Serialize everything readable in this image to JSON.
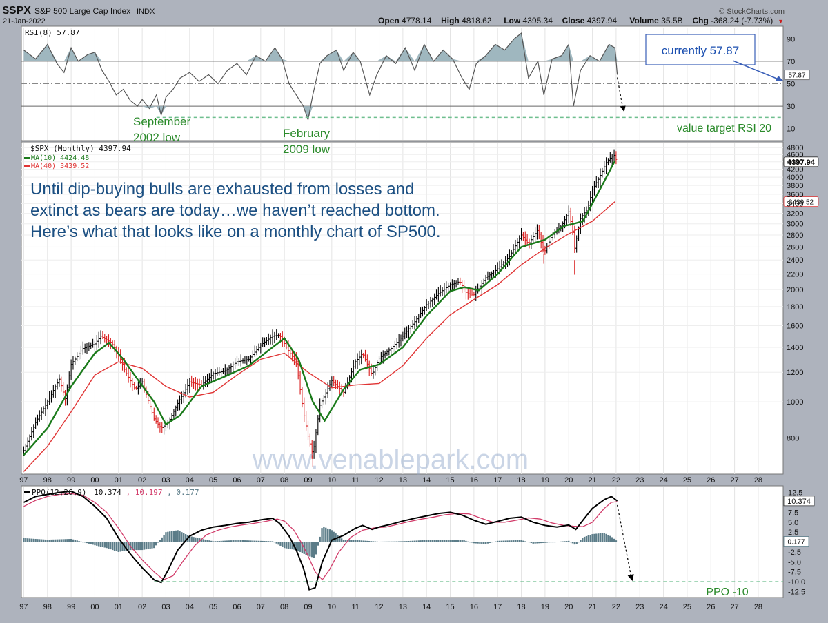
{
  "header": {
    "symbol": "$SPX",
    "name": "S&P 500 Large Cap Index",
    "exchange": "INDX",
    "date": "21-Jan-2022",
    "brand": "© StockCharts.com",
    "stats": [
      {
        "label": "Open",
        "value": "4778.14"
      },
      {
        "label": "High",
        "value": "4818.62"
      },
      {
        "label": "Low",
        "value": "4395.34"
      },
      {
        "label": "Close",
        "value": "4397.94"
      },
      {
        "label": "Volume",
        "value": "35.5B"
      },
      {
        "label": "Chg",
        "value": "-368.24 (-7.73%)"
      }
    ],
    "chg_arrow": "▼"
  },
  "annotations": {
    "callout": "currently 57.87",
    "sept_label_1": "September",
    "sept_label_2": "2002 low",
    "feb_label_1": "February",
    "feb_label_2": "2009 low",
    "rsi_target": "value target RSI 20",
    "ppo_target": "PPO -10",
    "message_line_1": "Until dip-buying bulls are exhausted from losses and",
    "message_line_2": "extinct as bears are today…we haven’t reached bottom.",
    "message_line_3": "Here’s what that looks like on a monthly chart of SP500.",
    "watermark": "www.venablepark.com"
  },
  "colors": {
    "panel_bg": "#ffffff",
    "rsi_fill": "#9fb7bf",
    "ma10": "#1a7a1a",
    "ma40": "#e03434",
    "up_bar": "#000000",
    "down_bar": "#d91e1e",
    "ppo_line": "#000000",
    "signal_line": "#d23c6a",
    "hist": "#5b7c88",
    "annotation_text": "#2a8a2a",
    "callout_text": "#1b4fb0",
    "message_text": "#1b4f82",
    "dashed_target": "#6fbf8f"
  },
  "chart_data": [
    {
      "type": "line",
      "panel": "RSI",
      "legend": "RSI(8) 57.87",
      "series": [
        {
          "name": "RSI(8)",
          "x": [
            1997.0,
            1997.5,
            1998.0,
            1998.4,
            1998.7,
            1999.0,
            1999.3,
            1999.7,
            2000.0,
            2000.3,
            2000.6,
            2000.9,
            2001.2,
            2001.5,
            2001.8,
            2002.0,
            2002.3,
            2002.6,
            2002.8,
            2003.0,
            2003.3,
            2003.6,
            2004.0,
            2004.4,
            2004.8,
            2005.2,
            2005.6,
            2006.0,
            2006.4,
            2006.8,
            2007.2,
            2007.6,
            2007.9,
            2008.2,
            2008.5,
            2008.8,
            2009.0,
            2009.2,
            2009.5,
            2009.8,
            2010.2,
            2010.5,
            2010.9,
            2011.2,
            2011.6,
            2011.9,
            2012.3,
            2012.7,
            2013.1,
            2013.5,
            2013.9,
            2014.3,
            2014.7,
            2015.1,
            2015.5,
            2015.8,
            2016.1,
            2016.5,
            2016.9,
            2017.3,
            2017.7,
            2018.0,
            2018.3,
            2018.7,
            2018.95,
            2019.3,
            2019.7,
            2020.0,
            2020.2,
            2020.5,
            2020.9,
            2021.3,
            2021.7,
            2021.95,
            2022.05
          ],
          "y": [
            80,
            72,
            85,
            68,
            60,
            82,
            70,
            76,
            78,
            62,
            52,
            40,
            45,
            35,
            30,
            36,
            28,
            40,
            22,
            38,
            45,
            55,
            60,
            52,
            58,
            50,
            62,
            68,
            58,
            75,
            70,
            82,
            72,
            50,
            40,
            30,
            18,
            40,
            68,
            75,
            80,
            62,
            78,
            70,
            40,
            58,
            75,
            68,
            82,
            62,
            85,
            70,
            80,
            72,
            55,
            45,
            68,
            75,
            85,
            80,
            90,
            95,
            55,
            70,
            40,
            72,
            75,
            85,
            30,
            62,
            75,
            70,
            85,
            82,
            58
          ]
        }
      ],
      "ylim": [
        0,
        100
      ],
      "yticks": [
        10,
        30,
        50,
        70,
        90
      ],
      "reference_lines": [
        30,
        50,
        70
      ],
      "current_value": "57.87",
      "target_value": 20
    },
    {
      "type": "bar",
      "panel": "Price",
      "title": "$SPX (Monthly) 4397.94",
      "scale": "log",
      "ylim": [
        640,
        4950
      ],
      "yticks": [
        800,
        1000,
        1200,
        1400,
        1600,
        1800,
        2000,
        2200,
        2400,
        2600,
        2800,
        3000,
        3200,
        3400,
        3600,
        3800,
        4000,
        4200,
        4400,
        4600,
        4800
      ],
      "price_label": "4397.94",
      "ma40_label": "3439.52",
      "series": [
        {
          "name": "$SPX",
          "x": [
            1997.0,
            1997.5,
            1998.0,
            1998.5,
            1998.75,
            1999.0,
            1999.5,
            2000.0,
            2000.25,
            2000.7,
            2001.0,
            2001.3,
            2001.7,
            2002.0,
            2002.5,
            2002.8,
            2003.1,
            2003.5,
            2004.0,
            2004.5,
            2005.0,
            2005.5,
            2006.0,
            2006.5,
            2007.0,
            2007.5,
            2007.8,
            2008.2,
            2008.5,
            2008.8,
            2009.0,
            2009.2,
            2009.5,
            2010.0,
            2010.5,
            2011.0,
            2011.3,
            2011.7,
            2012.0,
            2012.5,
            2013.0,
            2013.5,
            2014.0,
            2014.5,
            2015.0,
            2015.4,
            2015.7,
            2016.0,
            2016.5,
            2017.0,
            2017.5,
            2018.0,
            2018.3,
            2018.7,
            2018.95,
            2019.3,
            2019.7,
            2020.0,
            2020.15,
            2020.25,
            2020.5,
            2020.8,
            2021.0,
            2021.3,
            2021.6,
            2021.9,
            2022.05
          ],
          "y": [
            740,
            880,
            1000,
            1150,
            1020,
            1260,
            1390,
            1430,
            1500,
            1440,
            1340,
            1200,
            1080,
            1130,
            900,
            850,
            880,
            990,
            1130,
            1110,
            1190,
            1210,
            1280,
            1300,
            1420,
            1500,
            1510,
            1360,
            1280,
            940,
            810,
            720,
            980,
            1140,
            1060,
            1280,
            1350,
            1180,
            1310,
            1390,
            1500,
            1640,
            1820,
            1950,
            2060,
            2100,
            1950,
            1940,
            2150,
            2270,
            2450,
            2800,
            2650,
            2900,
            2500,
            2800,
            2960,
            3230,
            2900,
            2580,
            3100,
            3300,
            3700,
            4000,
            4400,
            4600,
            4397.94
          ]
        },
        {
          "name": "MA(10) 4424.48",
          "x": [
            1997.0,
            1998.0,
            1999.0,
            2000.0,
            2000.6,
            2001.2,
            2001.8,
            2002.5,
            2003.0,
            2003.6,
            2004.5,
            2005.5,
            2006.5,
            2007.5,
            2008.0,
            2008.6,
            2009.2,
            2009.7,
            2010.5,
            2011.2,
            2012.0,
            2013.0,
            2014.0,
            2015.0,
            2015.6,
            2016.2,
            2017.0,
            2018.0,
            2019.0,
            2019.8,
            2020.2,
            2020.6,
            2021.0,
            2021.5,
            2021.95
          ],
          "y": [
            720,
            850,
            1100,
            1350,
            1440,
            1300,
            1150,
            1000,
            870,
            920,
            1100,
            1170,
            1250,
            1400,
            1480,
            1300,
            1000,
            890,
            1080,
            1220,
            1260,
            1400,
            1700,
            1980,
            2030,
            1990,
            2200,
            2600,
            2720,
            2960,
            3000,
            3050,
            3400,
            3900,
            4424.48
          ]
        },
        {
          "name": "MA(40) 3439.52",
          "x": [
            1997.0,
            1998.0,
            1999.0,
            2000.0,
            2001.0,
            2002.0,
            2003.0,
            2004.0,
            2005.0,
            2006.0,
            2007.0,
            2008.0,
            2009.0,
            2010.0,
            2011.0,
            2012.0,
            2013.0,
            2014.0,
            2015.0,
            2016.0,
            2017.0,
            2018.0,
            2019.0,
            2020.0,
            2021.0,
            2021.95
          ],
          "y": [
            650,
            760,
            940,
            1180,
            1280,
            1230,
            1100,
            1030,
            1060,
            1180,
            1300,
            1350,
            1200,
            1090,
            1110,
            1120,
            1250,
            1480,
            1710,
            1880,
            2060,
            2330,
            2580,
            2820,
            3050,
            3439.52
          ]
        }
      ]
    },
    {
      "type": "line",
      "panel": "PPO",
      "legend_name": "PPO(12,26,9)",
      "legend_values": [
        "10.374",
        "10.197",
        "0.177"
      ],
      "ylim": [
        -13.8,
        14
      ],
      "yticks": [
        -12.5,
        -10.0,
        -7.5,
        -5.0,
        -2.5,
        0.177,
        2.5,
        5.0,
        7.5,
        10.374,
        12.5
      ],
      "current_label": "10.374",
      "hist_label": "0.177",
      "target_value": -10,
      "series": [
        {
          "name": "PPO",
          "x": [
            1997.0,
            1997.5,
            1998.0,
            1998.5,
            1999.0,
            1999.5,
            2000.0,
            2000.5,
            2001.0,
            2001.5,
            2002.0,
            2002.5,
            2002.8,
            2003.1,
            2003.5,
            2004.0,
            2004.5,
            2005.0,
            2005.5,
            2006.0,
            2006.5,
            2007.0,
            2007.5,
            2007.8,
            2008.2,
            2008.5,
            2008.8,
            2009.05,
            2009.3,
            2009.6,
            2010.0,
            2010.5,
            2011.0,
            2011.3,
            2011.7,
            2012.0,
            2012.5,
            2013.0,
            2013.5,
            2014.0,
            2014.5,
            2015.0,
            2015.5,
            2016.0,
            2016.5,
            2017.0,
            2017.5,
            2018.0,
            2018.5,
            2019.0,
            2019.5,
            2020.0,
            2020.3,
            2020.6,
            2021.0,
            2021.5,
            2021.8,
            2022.05
          ],
          "y": [
            10,
            11.5,
            12,
            12.5,
            12.8,
            11.5,
            9,
            6,
            1,
            -3,
            -6.5,
            -9.5,
            -10.2,
            -7,
            -2,
            1.5,
            3,
            3.8,
            4.2,
            4.7,
            5,
            5.6,
            6,
            4.7,
            1.5,
            -2,
            -6.5,
            -12,
            -11.5,
            -5,
            0.5,
            1.7,
            3.5,
            4.2,
            3.2,
            3.8,
            4.5,
            5.3,
            6,
            6.6,
            7.2,
            7.5,
            6.8,
            5.5,
            4.5,
            5.2,
            6,
            6.3,
            5,
            4.2,
            3.8,
            4.3,
            3.2,
            5.5,
            8.5,
            10.7,
            11.5,
            10.374
          ]
        },
        {
          "name": "Signal",
          "x": [
            1997.0,
            1997.5,
            1998.0,
            1998.5,
            1999.0,
            1999.5,
            2000.0,
            2000.5,
            2001.0,
            2001.5,
            2002.0,
            2002.5,
            2002.9,
            2003.3,
            2003.7,
            2004.2,
            2004.7,
            2005.2,
            2005.7,
            2006.2,
            2006.7,
            2007.2,
            2007.7,
            2008.0,
            2008.4,
            2008.7,
            2009.0,
            2009.3,
            2009.6,
            2009.9,
            2010.3,
            2010.8,
            2011.3,
            2011.8,
            2012.3,
            2012.8,
            2013.3,
            2013.8,
            2014.3,
            2014.8,
            2015.3,
            2015.8,
            2016.3,
            2016.8,
            2017.3,
            2017.8,
            2018.3,
            2018.8,
            2019.3,
            2019.8,
            2020.2,
            2020.6,
            2021.0,
            2021.5,
            2021.8,
            2022.05
          ],
          "y": [
            9,
            10.5,
            11.5,
            12,
            12.2,
            11.8,
            10,
            7.5,
            3.5,
            -1,
            -4.5,
            -7.5,
            -9.5,
            -8.5,
            -5,
            -1,
            1.8,
            3,
            3.8,
            4.3,
            4.7,
            5.2,
            5.8,
            5.3,
            3,
            0,
            -3.5,
            -7.5,
            -9.5,
            -7,
            -2.5,
            1.2,
            3,
            3.6,
            3.8,
            4.5,
            5.2,
            5.8,
            6.3,
            6.9,
            7.2,
            7.1,
            6,
            5,
            5,
            5.5,
            6.1,
            5.8,
            4.8,
            4.2,
            4,
            3.9,
            5,
            8.5,
            10,
            10.197
          ]
        }
      ],
      "histogram": {
        "x": [
          1997.0,
          1998.0,
          1999.0,
          2000.0,
          2000.5,
          2001.0,
          2001.5,
          2002.0,
          2002.5,
          2003.0,
          2003.5,
          2004.0,
          2005.0,
          2006.0,
          2007.0,
          2007.5,
          2008.0,
          2008.5,
          2009.0,
          2009.3,
          2009.6,
          2010.0,
          2010.5,
          2011.0,
          2012.0,
          2013.0,
          2014.0,
          2015.0,
          2015.5,
          2016.0,
          2016.5,
          2017.0,
          2018.0,
          2018.5,
          2019.0,
          2020.0,
          2020.3,
          2020.6,
          2021.0,
          2021.5,
          2021.8,
          2022.05
        ],
        "y": [
          1,
          0.6,
          0.8,
          -0.8,
          -1.5,
          -2.5,
          -2,
          -2,
          -1.5,
          2.5,
          3,
          1.5,
          0.2,
          0.5,
          0.3,
          0.2,
          -1.5,
          -2,
          -3.5,
          -4,
          4,
          3,
          0.5,
          0.5,
          0.1,
          0.2,
          0.5,
          0.5,
          0.6,
          -0.3,
          -0.5,
          0.3,
          0.5,
          -0.4,
          -0.2,
          0.3,
          -0.8,
          1.2,
          2,
          2.3,
          1.4,
          0.177
        ]
      }
    }
  ],
  "x_axis": {
    "labels": [
      "97",
      "98",
      "99",
      "00",
      "01",
      "02",
      "03",
      "04",
      "05",
      "06",
      "07",
      "08",
      "09",
      "10",
      "11",
      "12",
      "13",
      "14",
      "15",
      "16",
      "17",
      "18",
      "19",
      "20",
      "21",
      "22",
      "23",
      "24",
      "25",
      "26",
      "27",
      "28"
    ]
  }
}
